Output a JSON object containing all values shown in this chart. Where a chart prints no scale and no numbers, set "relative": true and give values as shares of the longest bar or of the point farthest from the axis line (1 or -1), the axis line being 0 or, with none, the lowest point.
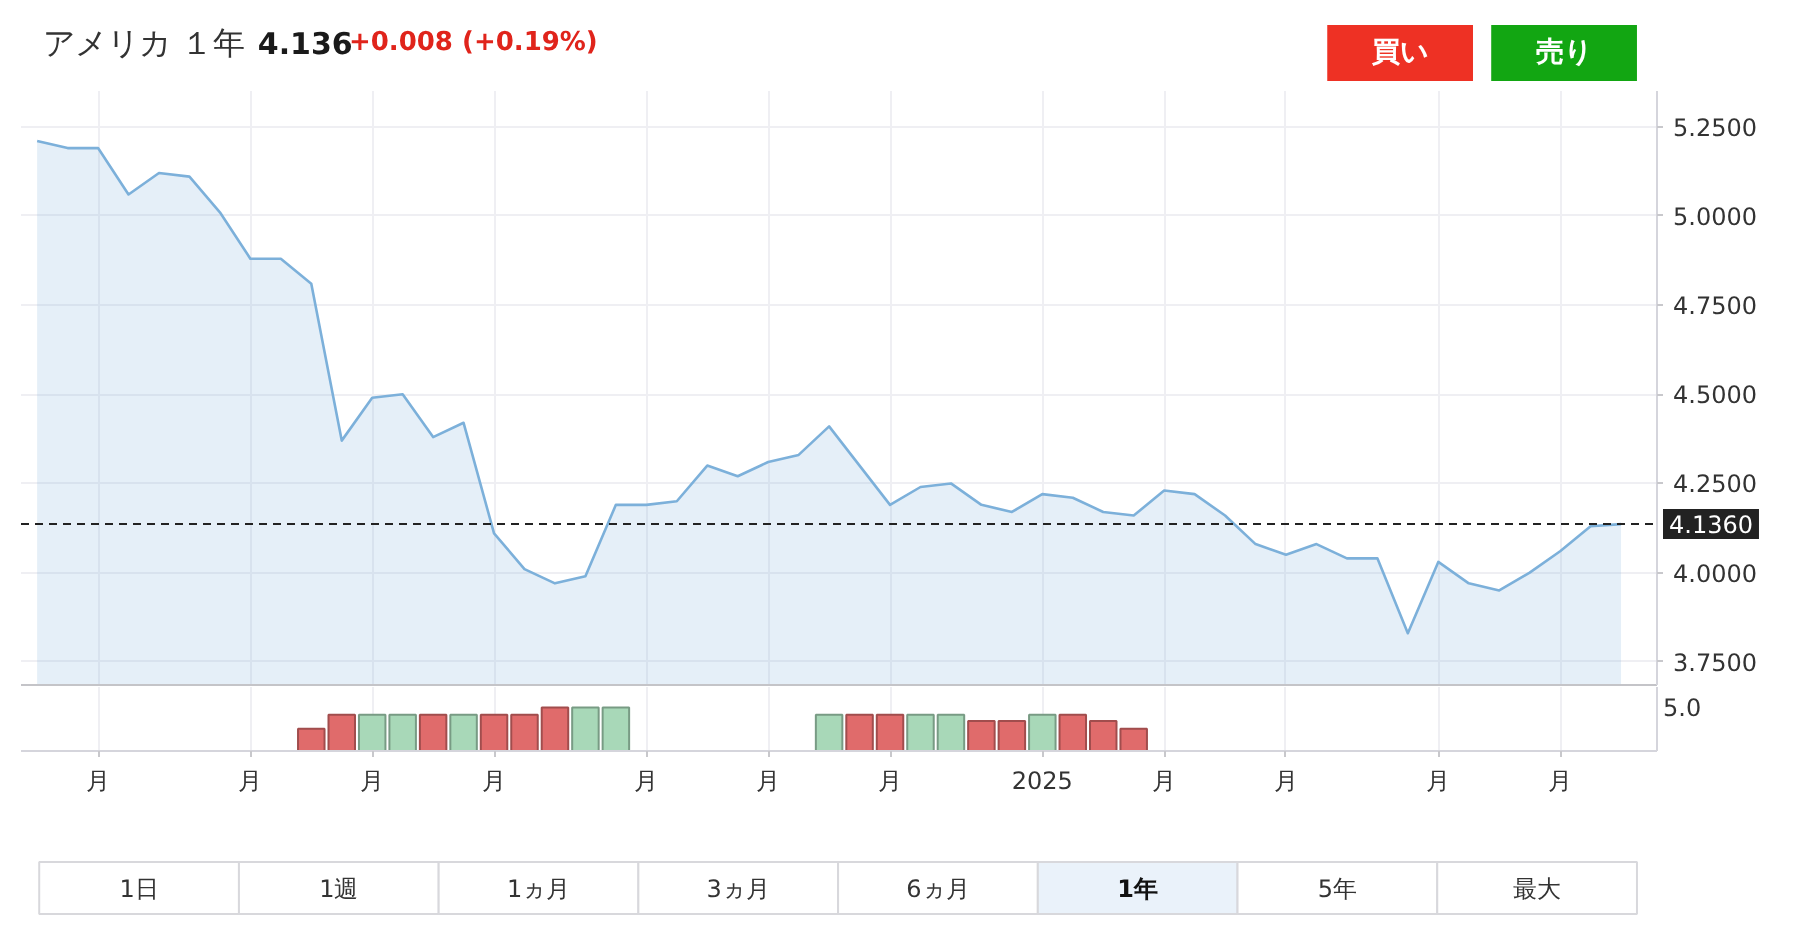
{
  "chart_data": [
    {
      "type": "area",
      "title": "アメリカ １年",
      "annotations": [
        "4.136",
        "+0.008 (+0.19%)",
        "買い",
        "売り",
        "1日",
        "1週",
        "1ヵ月",
        "3ヵ月",
        "6ヵ月",
        "1年",
        "5年",
        "最大"
      ],
      "categories": [
        null,
        null,
        null,
        null,
        null,
        null,
        null,
        null,
        null,
        null,
        null,
        null,
        null,
        null,
        null,
        null,
        null,
        null,
        null,
        null,
        null,
        null,
        null,
        null,
        null,
        null,
        null,
        null,
        null,
        null,
        null,
        null,
        null,
        null,
        null,
        null,
        null,
        null,
        null,
        null,
        null,
        null,
        null,
        null,
        null,
        null,
        null,
        null,
        null,
        null,
        null,
        null,
        null
      ],
      "values": [
        5.21,
        5.19,
        5.19,
        5.06,
        5.12,
        5.11,
        5.01,
        4.88,
        4.88,
        4.81,
        4.37,
        4.49,
        4.5,
        4.38,
        4.42,
        4.11,
        4.01,
        3.97,
        3.99,
        4.19,
        4.19,
        4.2,
        4.3,
        4.27,
        4.31,
        4.33,
        4.41,
        4.3,
        4.19,
        4.24,
        4.25,
        4.19,
        4.17,
        4.22,
        4.21,
        4.17,
        4.16,
        4.23,
        4.22,
        4.16,
        4.08,
        4.05,
        4.08,
        4.04,
        4.04,
        3.83,
        4.03,
        3.97,
        3.95,
        4.0,
        4.06,
        4.13,
        4.136
      ],
      "color": "#7cb0da",
      "ylim": [
        3.685,
        5.35
      ],
      "yticks": [
        {
          "value": 3.75,
          "label": "3.7500"
        },
        {
          "value": 4.0,
          "label": "4.0000"
        },
        {
          "value": 4.25,
          "label": "4.2500"
        },
        {
          "value": 4.5,
          "label": "4.5000"
        },
        {
          "value": 4.75,
          "label": "4.7500"
        },
        {
          "value": 5.0,
          "label": "5.0000"
        },
        {
          "value": 5.25,
          "label": "5.2500"
        }
      ],
      "tick_labels": "y",
      "grid": true,
      "ref_lines": [
        {
          "axis": "y",
          "value": 4.136,
          "label": "4.1360",
          "line_style": "dashed",
          "color": "#222222"
        }
      ]
    },
    {
      "type": "bar",
      "relative": true,
      "annotations": [
        "5.0"
      ],
      "categories": [
        null,
        null,
        "月",
        null,
        null,
        null,
        null,
        "月",
        null,
        null,
        null,
        "月",
        null,
        null,
        null,
        "月",
        null,
        null,
        null,
        null,
        "月",
        null,
        null,
        null,
        "月",
        null,
        null,
        null,
        "月",
        null,
        null,
        null,
        null,
        "2025",
        null,
        null,
        null,
        "月",
        null,
        null,
        null,
        "月",
        null,
        null,
        null,
        null,
        "月",
        null,
        null,
        null,
        "月",
        null,
        null
      ],
      "values": [
        null,
        null,
        null,
        null,
        null,
        null,
        null,
        null,
        null,
        0.51,
        0.83,
        0.83,
        0.83,
        0.83,
        0.83,
        0.83,
        0.83,
        1,
        1,
        1,
        null,
        null,
        null,
        null,
        null,
        null,
        0.83,
        0.83,
        0.83,
        0.83,
        0.83,
        0.69,
        0.69,
        0.83,
        0.83,
        0.69,
        0.51,
        null,
        null,
        null,
        null,
        null,
        null,
        null,
        null,
        null,
        null,
        null,
        null,
        null,
        null,
        null,
        null
      ],
      "colors": [
        null,
        null,
        null,
        null,
        null,
        null,
        null,
        null,
        null,
        "#e06b6b",
        "#e06b6b",
        "#a8d8b8",
        "#a8d8b8",
        "#e06b6b",
        "#a8d8b8",
        "#e06b6b",
        "#e06b6b",
        "#e06b6b",
        "#a8d8b8",
        "#a8d8b8",
        null,
        null,
        null,
        null,
        null,
        null,
        "#a8d8b8",
        "#e06b6b",
        "#e06b6b",
        "#a8d8b8",
        "#a8d8b8",
        "#e06b6b",
        "#e06b6b",
        "#a8d8b8",
        "#e06b6b",
        "#e06b6b",
        "#e06b6b",
        null,
        null,
        null,
        null,
        null,
        null,
        null,
        null,
        null,
        null,
        null,
        null,
        null,
        null,
        null,
        null
      ],
      "grid": "x"
    }
  ]
}
